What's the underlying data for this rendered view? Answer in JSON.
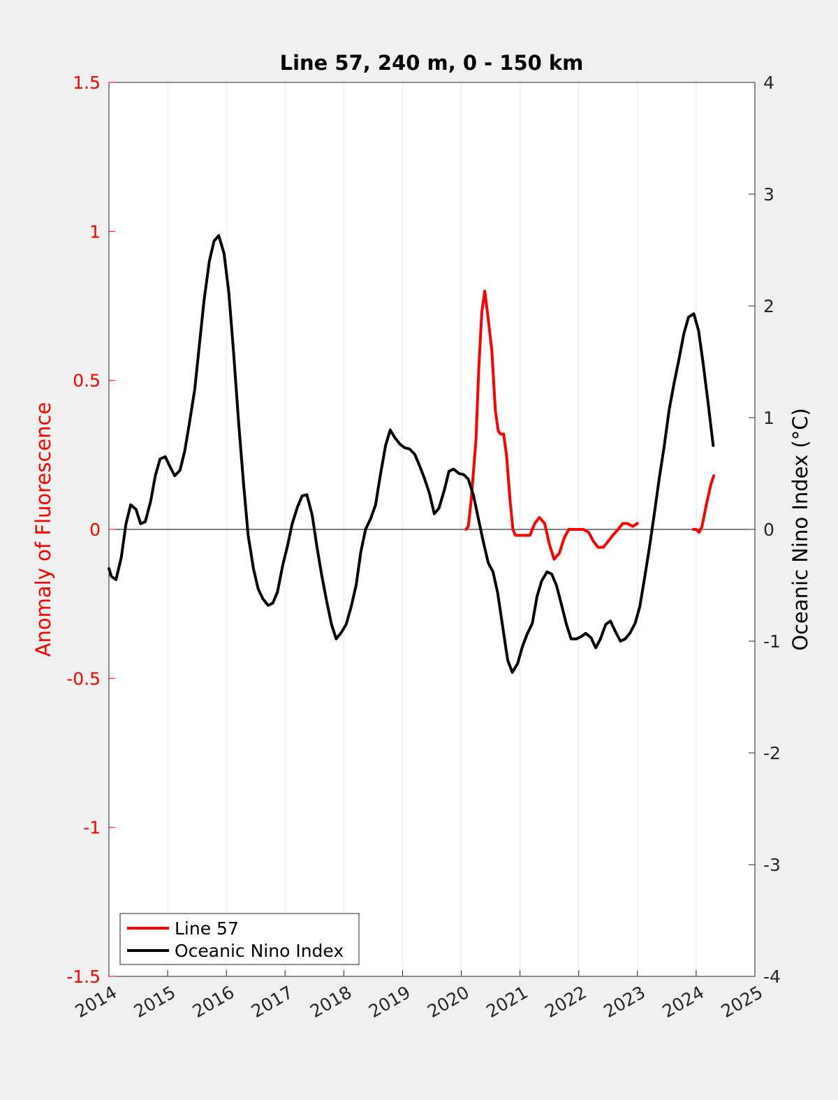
{
  "chart_data": {
    "type": "line",
    "title": "Line 57, 240 m, 0 - 150 km",
    "xlabel": "",
    "ylabel_left": "Anomaly of Fluorescence",
    "ylabel_right": "Oceanic Nino Index (°C)",
    "xlim": [
      2014,
      2025
    ],
    "ylim_left": [
      -1.5,
      1.5
    ],
    "ylim_right": [
      -4,
      4
    ],
    "x_ticks": [
      "2014",
      "2015",
      "2016",
      "2017",
      "2018",
      "2019",
      "2020",
      "2021",
      "2022",
      "2023",
      "2024",
      "2025"
    ],
    "y_ticks_left": [
      "-1.5",
      "-1",
      "-0.5",
      "0",
      "0.5",
      "1",
      "1.5"
    ],
    "y_ticks_right": [
      "-4",
      "-3",
      "-2",
      "-1",
      "0",
      "1",
      "2",
      "3",
      "4"
    ],
    "grid": "vertical",
    "legend_position": "bottom-left",
    "colors": {
      "line57": "#ff0000",
      "oni": "#000000",
      "left_axis": "#ff0000",
      "right_axis": "#000000"
    },
    "series": [
      {
        "name": "Line 57",
        "axis": "left",
        "segments": [
          [
            [
              2020.08,
              0.0
            ],
            [
              2020.12,
              0.01
            ],
            [
              2020.17,
              0.1
            ],
            [
              2020.25,
              0.3
            ],
            [
              2020.3,
              0.55
            ],
            [
              2020.35,
              0.73
            ],
            [
              2020.4,
              0.8
            ],
            [
              2020.45,
              0.72
            ],
            [
              2020.52,
              0.6
            ],
            [
              2020.58,
              0.4
            ],
            [
              2020.63,
              0.33
            ],
            [
              2020.67,
              0.32
            ],
            [
              2020.72,
              0.32
            ],
            [
              2020.77,
              0.25
            ],
            [
              2020.83,
              0.1
            ],
            [
              2020.88,
              0.0
            ],
            [
              2020.92,
              -0.02
            ],
            [
              2021.0,
              -0.02
            ],
            [
              2021.08,
              -0.02
            ],
            [
              2021.17,
              -0.02
            ],
            [
              2021.25,
              0.02
            ],
            [
              2021.33,
              0.04
            ],
            [
              2021.42,
              0.02
            ],
            [
              2021.5,
              -0.05
            ],
            [
              2021.58,
              -0.1
            ],
            [
              2021.67,
              -0.08
            ],
            [
              2021.75,
              -0.03
            ],
            [
              2021.83,
              0.0
            ],
            [
              2021.92,
              0.0
            ],
            [
              2022.0,
              0.0
            ],
            [
              2022.08,
              0.0
            ],
            [
              2022.17,
              -0.01
            ],
            [
              2022.25,
              -0.04
            ],
            [
              2022.33,
              -0.06
            ],
            [
              2022.42,
              -0.06
            ],
            [
              2022.5,
              -0.04
            ],
            [
              2022.58,
              -0.02
            ],
            [
              2022.67,
              0.0
            ],
            [
              2022.75,
              0.02
            ],
            [
              2022.83,
              0.02
            ],
            [
              2022.92,
              0.01
            ],
            [
              2023.0,
              0.02
            ]
          ],
          [
            [
              2023.95,
              0.0
            ],
            [
              2024.0,
              0.0
            ],
            [
              2024.05,
              -0.01
            ],
            [
              2024.1,
              0.01
            ],
            [
              2024.17,
              0.08
            ],
            [
              2024.25,
              0.15
            ],
            [
              2024.3,
              0.18
            ]
          ]
        ]
      },
      {
        "name": "Oceanic Nino Index",
        "axis": "right",
        "segments": [
          [
            [
              2014.0,
              -0.35
            ],
            [
              2014.04,
              -0.42
            ],
            [
              2014.12,
              -0.45
            ],
            [
              2014.21,
              -0.25
            ],
            [
              2014.29,
              0.05
            ],
            [
              2014.37,
              0.22
            ],
            [
              2014.46,
              0.18
            ],
            [
              2014.54,
              0.05
            ],
            [
              2014.62,
              0.07
            ],
            [
              2014.71,
              0.25
            ],
            [
              2014.79,
              0.48
            ],
            [
              2014.87,
              0.63
            ],
            [
              2014.96,
              0.65
            ],
            [
              2015.04,
              0.56
            ],
            [
              2015.12,
              0.48
            ],
            [
              2015.21,
              0.53
            ],
            [
              2015.29,
              0.7
            ],
            [
              2015.37,
              0.95
            ],
            [
              2015.46,
              1.25
            ],
            [
              2015.54,
              1.65
            ],
            [
              2015.62,
              2.05
            ],
            [
              2015.71,
              2.4
            ],
            [
              2015.79,
              2.58
            ],
            [
              2015.87,
              2.63
            ],
            [
              2015.96,
              2.47
            ],
            [
              2016.04,
              2.13
            ],
            [
              2016.12,
              1.6
            ],
            [
              2016.21,
              0.95
            ],
            [
              2016.29,
              0.42
            ],
            [
              2016.37,
              -0.05
            ],
            [
              2016.46,
              -0.35
            ],
            [
              2016.54,
              -0.53
            ],
            [
              2016.62,
              -0.62
            ],
            [
              2016.71,
              -0.68
            ],
            [
              2016.79,
              -0.66
            ],
            [
              2016.87,
              -0.56
            ],
            [
              2016.96,
              -0.32
            ],
            [
              2017.04,
              -0.15
            ],
            [
              2017.12,
              0.05
            ],
            [
              2017.21,
              0.2
            ],
            [
              2017.29,
              0.3
            ],
            [
              2017.37,
              0.31
            ],
            [
              2017.46,
              0.13
            ],
            [
              2017.54,
              -0.15
            ],
            [
              2017.62,
              -0.4
            ],
            [
              2017.71,
              -0.65
            ],
            [
              2017.79,
              -0.85
            ],
            [
              2017.87,
              -0.98
            ],
            [
              2017.96,
              -0.92
            ],
            [
              2018.04,
              -0.85
            ],
            [
              2018.12,
              -0.7
            ],
            [
              2018.21,
              -0.5
            ],
            [
              2018.29,
              -0.2
            ],
            [
              2018.37,
              0.0
            ],
            [
              2018.46,
              0.1
            ],
            [
              2018.54,
              0.22
            ],
            [
              2018.62,
              0.48
            ],
            [
              2018.71,
              0.75
            ],
            [
              2018.79,
              0.89
            ],
            [
              2018.87,
              0.82
            ],
            [
              2018.96,
              0.76
            ],
            [
              2019.04,
              0.73
            ],
            [
              2019.12,
              0.72
            ],
            [
              2019.21,
              0.67
            ],
            [
              2019.29,
              0.57
            ],
            [
              2019.37,
              0.46
            ],
            [
              2019.46,
              0.32
            ],
            [
              2019.54,
              0.14
            ],
            [
              2019.62,
              0.19
            ],
            [
              2019.71,
              0.35
            ],
            [
              2019.79,
              0.52
            ],
            [
              2019.87,
              0.54
            ],
            [
              2019.96,
              0.5
            ],
            [
              2020.04,
              0.49
            ],
            [
              2020.12,
              0.45
            ],
            [
              2020.21,
              0.3
            ],
            [
              2020.29,
              0.1
            ],
            [
              2020.37,
              -0.1
            ],
            [
              2020.46,
              -0.3
            ],
            [
              2020.54,
              -0.38
            ],
            [
              2020.62,
              -0.57
            ],
            [
              2020.71,
              -0.89
            ],
            [
              2020.79,
              -1.17
            ],
            [
              2020.87,
              -1.28
            ],
            [
              2020.96,
              -1.2
            ],
            [
              2021.04,
              -1.05
            ],
            [
              2021.12,
              -0.94
            ],
            [
              2021.21,
              -0.84
            ],
            [
              2021.29,
              -0.6
            ],
            [
              2021.37,
              -0.46
            ],
            [
              2021.46,
              -0.38
            ],
            [
              2021.54,
              -0.4
            ],
            [
              2021.62,
              -0.5
            ],
            [
              2021.71,
              -0.68
            ],
            [
              2021.79,
              -0.85
            ],
            [
              2021.87,
              -0.98
            ],
            [
              2021.96,
              -0.98
            ],
            [
              2022.04,
              -0.96
            ],
            [
              2022.12,
              -0.93
            ],
            [
              2022.21,
              -0.97
            ],
            [
              2022.29,
              -1.06
            ],
            [
              2022.37,
              -0.98
            ],
            [
              2022.46,
              -0.85
            ],
            [
              2022.54,
              -0.82
            ],
            [
              2022.62,
              -0.91
            ],
            [
              2022.71,
              -1.0
            ],
            [
              2022.79,
              -0.98
            ],
            [
              2022.87,
              -0.93
            ],
            [
              2022.96,
              -0.84
            ],
            [
              2023.04,
              -0.69
            ],
            [
              2023.12,
              -0.44
            ],
            [
              2023.21,
              -0.14
            ],
            [
              2023.29,
              0.15
            ],
            [
              2023.37,
              0.45
            ],
            [
              2023.46,
              0.76
            ],
            [
              2023.54,
              1.07
            ],
            [
              2023.62,
              1.3
            ],
            [
              2023.71,
              1.53
            ],
            [
              2023.79,
              1.75
            ],
            [
              2023.87,
              1.9
            ],
            [
              2023.96,
              1.93
            ],
            [
              2024.04,
              1.78
            ],
            [
              2024.12,
              1.48
            ],
            [
              2024.21,
              1.1
            ],
            [
              2024.29,
              0.75
            ]
          ]
        ]
      }
    ]
  }
}
